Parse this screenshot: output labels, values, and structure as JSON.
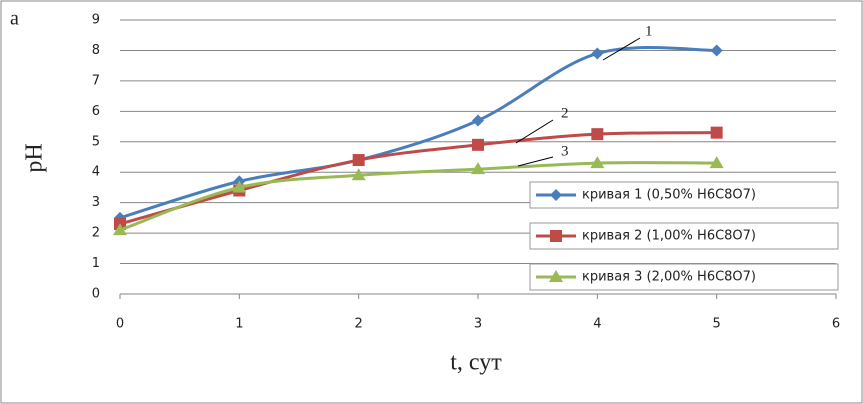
{
  "chart_data": {
    "type": "line",
    "panel_label": "а",
    "x_label": "t, сут",
    "y_label": "pH",
    "x": [
      0,
      1,
      2,
      3,
      4,
      5
    ],
    "xlim": [
      0,
      6
    ],
    "xticks": [
      0,
      1,
      2,
      3,
      4,
      5,
      6
    ],
    "ylim": [
      0,
      9
    ],
    "yticks": [
      0,
      1,
      2,
      3,
      4,
      5,
      6,
      7,
      8,
      9
    ],
    "grid": true,
    "smooth": true,
    "series": [
      {
        "name": "кривая 1 (0,50% H6C8O7)",
        "color": "#4a7ebb",
        "marker": "diamond",
        "values": [
          2.5,
          3.7,
          4.4,
          5.7,
          7.9,
          8.0
        ]
      },
      {
        "name": "кривая 2 (1,00% H6C8O7)",
        "color": "#be4b48",
        "marker": "square",
        "values": [
          2.3,
          3.4,
          4.4,
          4.9,
          5.25,
          5.3
        ]
      },
      {
        "name": "кривая 3 (2,00% H6C8O7)",
        "color": "#98b954",
        "marker": "triangle",
        "values": [
          2.1,
          3.5,
          3.9,
          4.1,
          4.3,
          4.3
        ]
      }
    ],
    "annotations": [
      "1",
      "2",
      "3"
    ]
  }
}
